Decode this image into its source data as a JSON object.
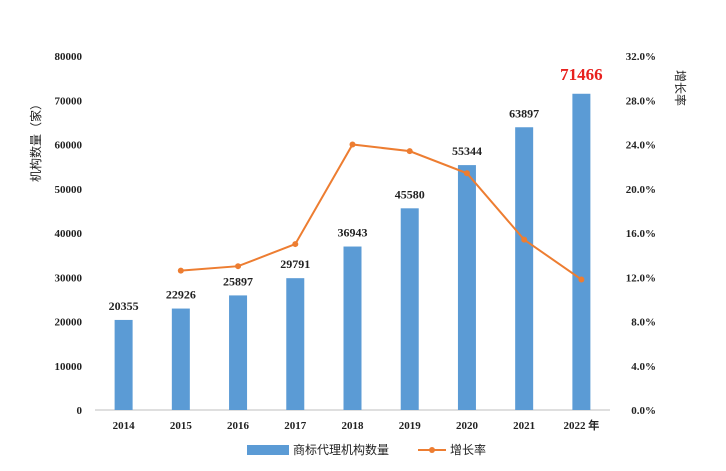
{
  "chart_data": {
    "type": "bar+line",
    "categories": [
      "2014",
      "2015",
      "2016",
      "2017",
      "2018",
      "2019",
      "2020",
      "2021",
      "2022 年"
    ],
    "series": [
      {
        "name": "商标代理机构数量",
        "type": "bar",
        "axis": "left",
        "color": "#5b9bd5",
        "values": [
          20355,
          22926,
          25897,
          29791,
          36943,
          45580,
          55344,
          63897,
          71466
        ]
      },
      {
        "name": "增长率",
        "type": "line",
        "axis": "right",
        "color": "#ed7d31",
        "values": [
          null,
          12.6,
          13.0,
          15.0,
          24.0,
          23.4,
          21.4,
          15.4,
          11.8
        ]
      }
    ],
    "data_labels": [
      "20355",
      "22926",
      "25897",
      "29791",
      "36943",
      "45580",
      "55344",
      "63897",
      "71466"
    ],
    "highlight_color": "#e8211e",
    "ylabel": "机构数量（家）",
    "y2label": "增长率",
    "ylim": [
      0,
      80000
    ],
    "y2lim": [
      0,
      32
    ],
    "yticks": [
      "0",
      "10000",
      "20000",
      "30000",
      "40000",
      "50000",
      "60000",
      "70000",
      "80000"
    ],
    "y2ticks": [
      "0.0%",
      "4.0%",
      "8.0%",
      "12.0%",
      "16.0%",
      "20.0%",
      "24.0%",
      "28.0%",
      "32.0%"
    ],
    "grid": false,
    "legend_position": "bottom"
  }
}
